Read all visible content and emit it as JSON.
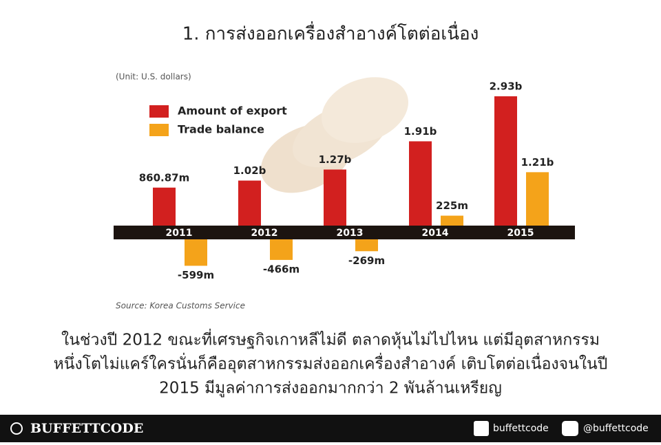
{
  "header": {
    "title": "1. การส่งออกเครื่องสำอางค์โตต่อเนื่อง"
  },
  "chart_data": {
    "type": "bar",
    "unit_note": "(Unit: U.S. dollars)",
    "source": "Source: Korea Customs Service",
    "categories": [
      "2011",
      "2012",
      "2013",
      "2014",
      "2015"
    ],
    "series": [
      {
        "name": "Amount of export",
        "color": "#d2201f",
        "values": [
          860870000,
          1020000000,
          1270000000,
          1910000000,
          2930000000
        ],
        "value_labels": [
          "860.87m",
          "1.02b",
          "1.27b",
          "1.91b",
          "2.93b"
        ]
      },
      {
        "name": "Trade balance",
        "color": "#f4a31a",
        "values": [
          -599000000,
          -466000000,
          -269000000,
          225000000,
          1210000000
        ],
        "value_labels": [
          "-599m",
          "-466m",
          "-269m",
          "225m",
          "1.21b"
        ]
      }
    ]
  },
  "body_text": [
    "ในช่วงปี 2012 ขณะที่เศรษฐกิจเกาหลีไม่ดี ตลาดหุ้นไม่ไปไหน แต่มีอุตสาหกรรม",
    "หนึ่งโตไม่แคร์ใครนั่นก็คืออุตสาหกรรมส่งออกเครื่องสำอางค์ เติบโตต่อเนื่องจนในปี",
    "2015 มีมูลค่าการส่งออกมากกว่า 2 พันล้านเหรียญ"
  ],
  "footer": {
    "brand": "BUFFETTCODE",
    "facebook": "buffettcode",
    "line": "@buffettcode"
  }
}
